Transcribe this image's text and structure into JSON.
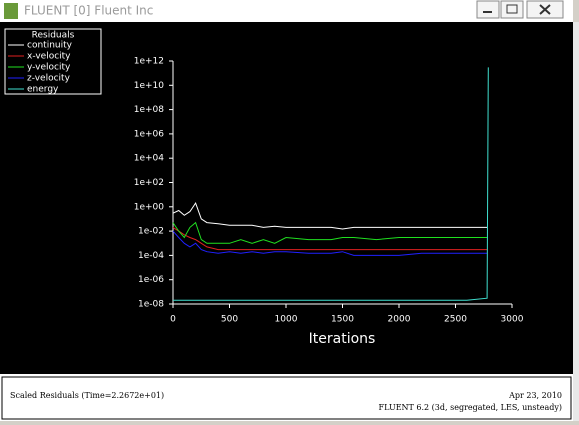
{
  "window": {
    "title": "FLUENT [0] Fluent Inc"
  },
  "chart_data": {
    "type": "line",
    "legend_title": "Residuals",
    "xlabel": "Iterations",
    "log_y": true,
    "legend": "top-left",
    "x": [
      0,
      50,
      100,
      150,
      200,
      250,
      300,
      400,
      500,
      600,
      700,
      800,
      900,
      1000,
      1200,
      1400,
      1500,
      1600,
      1800,
      2000,
      2200,
      2400,
      2600,
      2780,
      2790
    ],
    "series": [
      {
        "name": "continuity",
        "color": "#ffffff",
        "values": [
          0.3,
          0.5,
          0.2,
          0.4,
          2,
          0.1,
          0.05,
          0.04,
          0.03,
          0.03,
          0.03,
          0.02,
          0.025,
          0.02,
          0.02,
          0.02,
          0.015,
          0.02,
          0.02,
          0.02,
          0.02,
          0.02,
          0.02,
          0.02,
          null
        ]
      },
      {
        "name": "x-velocity",
        "color": "#e02020",
        "values": [
          0.02,
          0.01,
          0.005,
          0.003,
          0.002,
          0.001,
          0.0005,
          0.0003,
          0.0003,
          0.0003,
          0.0003,
          0.0003,
          0.0003,
          0.0003,
          0.0003,
          0.0003,
          0.0003,
          0.0003,
          0.0003,
          0.0003,
          0.0003,
          0.0003,
          0.0003,
          0.0003,
          null
        ]
      },
      {
        "name": "y-velocity",
        "color": "#20e020",
        "values": [
          0.05,
          0.01,
          0.003,
          0.02,
          0.05,
          0.002,
          0.001,
          0.001,
          0.001,
          0.002,
          0.001,
          0.002,
          0.001,
          0.003,
          0.002,
          0.002,
          0.003,
          0.003,
          0.002,
          0.003,
          0.003,
          0.003,
          0.003,
          0.003,
          null
        ]
      },
      {
        "name": "z-velocity",
        "color": "#2020ff",
        "values": [
          0.01,
          0.003,
          0.001,
          0.0005,
          0.001,
          0.0003,
          0.0002,
          0.00015,
          0.0002,
          0.00015,
          0.0002,
          0.00015,
          0.0002,
          0.0002,
          0.00015,
          0.00015,
          0.0002,
          0.0001,
          0.0001,
          0.0001,
          0.00015,
          0.00015,
          0.00015,
          0.00015,
          null
        ]
      },
      {
        "name": "energy",
        "color": "#40e0d0",
        "values": [
          2e-08,
          2e-08,
          2e-08,
          2e-08,
          2e-08,
          2e-08,
          2e-08,
          2e-08,
          2e-08,
          2e-08,
          2e-08,
          2e-08,
          2e-08,
          2e-08,
          2e-08,
          2e-08,
          2e-08,
          2e-08,
          2e-08,
          2e-08,
          2e-08,
          2e-08,
          2e-08,
          3e-08,
          300000000000.0
        ]
      }
    ],
    "xlim": [
      0,
      3000
    ],
    "xticks": [
      0,
      500,
      1000,
      1500,
      2000,
      2500,
      3000
    ],
    "ylim": [
      1e-08,
      1000000000000.0
    ],
    "yticks": [
      {
        "value": 1e-08,
        "label": "1e-08"
      },
      {
        "value": 1e-06,
        "label": "1e-06"
      },
      {
        "value": 0.0001,
        "label": "1e-04"
      },
      {
        "value": 0.01,
        "label": "1e-02"
      },
      {
        "value": 1,
        "label": "1e+00"
      },
      {
        "value": 100,
        "label": "1e+02"
      },
      {
        "value": 10000,
        "label": "1e+04"
      },
      {
        "value": 1000000.0,
        "label": "1e+06"
      },
      {
        "value": 100000000.0,
        "label": "1e+08"
      },
      {
        "value": 10000000000.0,
        "label": "1e+10"
      },
      {
        "value": 1000000000000.0,
        "label": "1e+12"
      }
    ]
  },
  "footer": {
    "left": "Scaled Residuals  (Time=2.2672e+01)",
    "date": "Apr 23, 2010",
    "version": "FLUENT 6.2 (3d, segregated, LES, unsteady)"
  }
}
